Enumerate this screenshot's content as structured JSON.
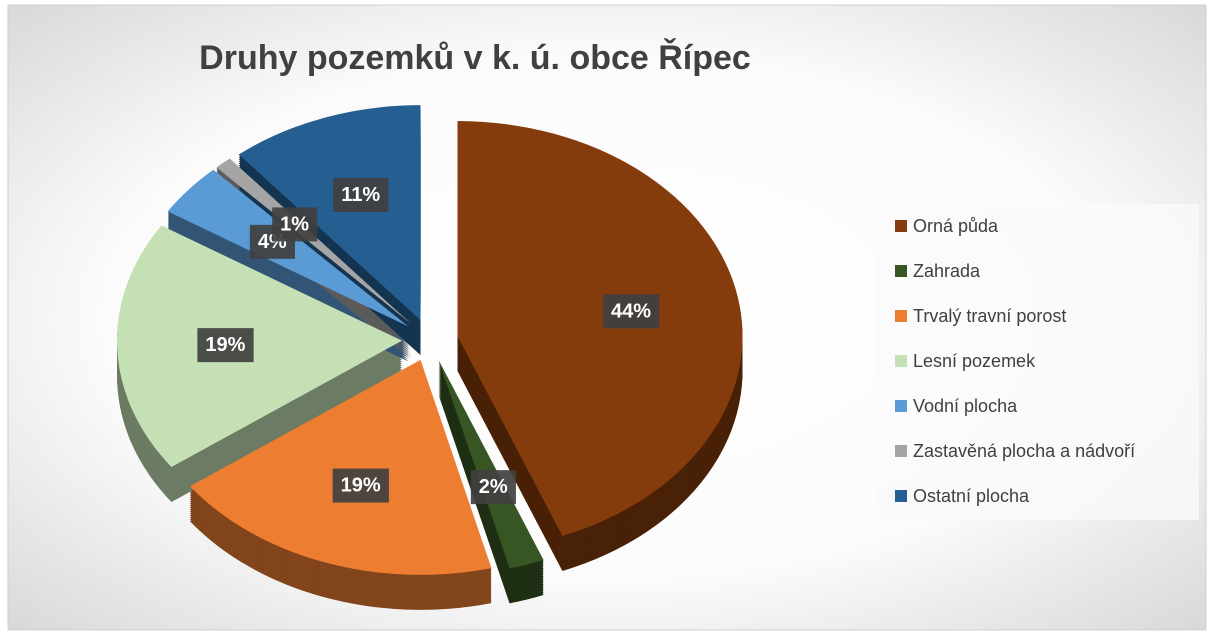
{
  "chart_data": {
    "type": "pie",
    "title": "Druhy pozemků v k. ú. obce Řípec",
    "categories": [
      "Orná půda",
      "Zahrada",
      "Trvalý travní porost",
      "Lesní pozemek",
      "Vodní plocha",
      "Zastavěná plocha a nádvoří",
      "Ostatní plocha"
    ],
    "values": [
      44,
      2,
      19,
      19,
      4,
      1,
      11
    ],
    "value_labels": [
      "44%",
      "2%",
      "19%",
      "19%",
      "4%",
      "1%",
      "11%"
    ],
    "colors": [
      "#843c0c",
      "#375623",
      "#ed7d31",
      "#c5e0b4",
      "#5b9bd5",
      "#a5a5a5",
      "#255e91"
    ],
    "legend": "right"
  }
}
